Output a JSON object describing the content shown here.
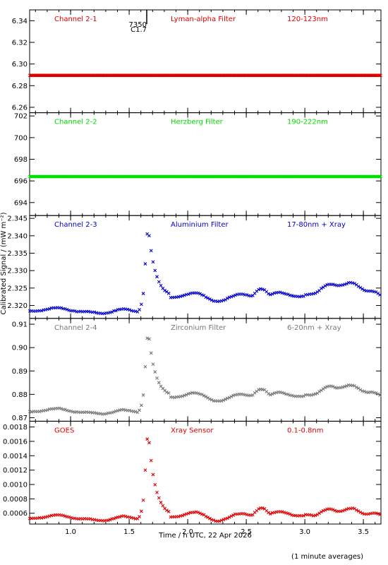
{
  "chart_data": {
    "type": "scatter",
    "xlabel": "Time / h UTC, 22 Apr 2026",
    "ylabel": "Calibrated Signal / (mW m⁻²)",
    "footnote": "(1 minute averages)",
    "xlim": [
      0.65,
      3.65
    ],
    "x_ticks": [
      "1.0",
      "1.5",
      "2.0",
      "2.5",
      "3.0",
      "3.5"
    ],
    "flare_marker": {
      "x": 1.65,
      "label_top": "7350",
      "label_bottom": "C1.7"
    },
    "panels": [
      {
        "channel": "Channel 2-1",
        "filter": "Lyman-alpha Filter",
        "band": "120-123nm",
        "color": "#dd0000",
        "ylim": [
          6.255,
          6.35
        ],
        "y_ticks": [
          "6.26",
          "6.28",
          "6.30",
          "6.32",
          "6.34"
        ],
        "series": {
          "shape": "flat",
          "base": 6.2895,
          "amp": 0.0
        }
      },
      {
        "channel": "Channel 2-2",
        "filter": "Herzberg Filter",
        "band": "190-222nm",
        "color": "#00dd00",
        "ylim": [
          692.8,
          702.3
        ],
        "y_ticks": [
          "694",
          "696",
          "698",
          "700",
          "702"
        ],
        "series": {
          "shape": "flat",
          "base": 696.4,
          "amp": 0.0
        }
      },
      {
        "channel": "Channel 2-3",
        "filter": "Aluminium Filter",
        "band": "17-80nm + Xray",
        "color": "#0000cc",
        "ylim": [
          2.3163,
          2.3458
        ],
        "y_ticks": [
          "2.320",
          "2.325",
          "2.330",
          "2.335",
          "2.340",
          "2.345"
        ],
        "series": {
          "shape": "flare",
          "base": 2.318,
          "peak": 2.3435,
          "post": 2.3225,
          "late": 2.325
        }
      },
      {
        "channel": "Channel 2-4",
        "filter": "Zirconium Filter",
        "band": "6-20nm + Xray",
        "color": "#777777",
        "ylim": [
          0.8685,
          0.9125
        ],
        "y_ticks": [
          "0.87",
          "0.88",
          "0.89",
          "0.90",
          "0.91"
        ],
        "series": {
          "shape": "flare",
          "base": 0.872,
          "peak": 0.9085,
          "post": 0.879,
          "late": 0.882
        }
      },
      {
        "channel": "GOES",
        "filter": "Xray Sensor",
        "band": "0.1-0.8nm",
        "color": "#dd0000",
        "ylim": [
          0.00045,
          0.00188
        ],
        "y_ticks": [
          "0.0006",
          "0.0008",
          "0.0010",
          "0.0012",
          "0.0014",
          "0.0016",
          "0.0018"
        ],
        "series": {
          "shape": "flare",
          "base": 0.00051,
          "peak": 0.00178,
          "post": 0.00056,
          "late": 0.00062
        }
      }
    ]
  }
}
